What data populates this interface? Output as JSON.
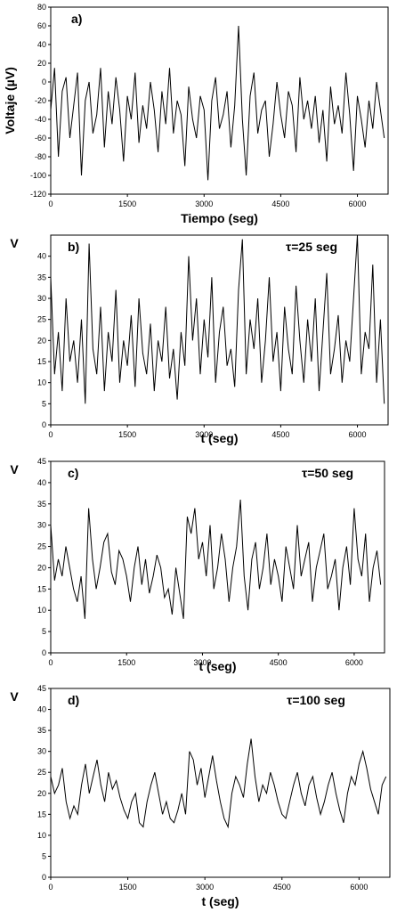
{
  "chart_data": [
    {
      "panel": "a)",
      "type": "line",
      "xlabel": "Tiempo (seg)",
      "ylabel": "Voltaje (µV)",
      "annotation": "",
      "xlim": [
        0,
        6600
      ],
      "ylim": [
        -120,
        80
      ],
      "xticks": [
        0,
        1500,
        3000,
        4500,
        6000
      ],
      "yticks": [
        -120,
        -100,
        -80,
        -60,
        -40,
        -20,
        0,
        20,
        40,
        60,
        80
      ],
      "series": [
        {
          "x": [
            0,
            75,
            150,
            225,
            300,
            375,
            450,
            525,
            600,
            675,
            750,
            825,
            900,
            975,
            1050,
            1125,
            1200,
            1275,
            1350,
            1425,
            1500,
            1575,
            1650,
            1725,
            1800,
            1875,
            1950,
            2025,
            2100,
            2175,
            2250,
            2325,
            2400,
            2475,
            2550,
            2625,
            2700,
            2775,
            2850,
            2925,
            3000,
            3075,
            3150,
            3225,
            3300,
            3375,
            3450,
            3525,
            3600,
            3675,
            3750,
            3825,
            3900,
            3975,
            4050,
            4125,
            4200,
            4275,
            4350,
            4425,
            4500,
            4575,
            4650,
            4725,
            4800,
            4875,
            4950,
            5025,
            5100,
            5175,
            5250,
            5325,
            5400,
            5475,
            5550,
            5625,
            5700,
            5775,
            5850,
            5925,
            6000,
            6075,
            6150,
            6225,
            6300,
            6375,
            6450,
            6525
          ],
          "y": [
            -30,
            15,
            -80,
            -10,
            5,
            -60,
            -25,
            10,
            -100,
            -20,
            0,
            -55,
            -35,
            15,
            -70,
            -10,
            -45,
            5,
            -30,
            -85,
            -15,
            -40,
            10,
            -65,
            -25,
            -50,
            0,
            -30,
            -75,
            -10,
            -45,
            15,
            -55,
            -20,
            -35,
            -90,
            -5,
            -40,
            -60,
            -15,
            -30,
            -105,
            -20,
            5,
            -50,
            -35,
            -10,
            -70,
            -25,
            60,
            -40,
            -100,
            -15,
            10,
            -55,
            -30,
            -20,
            -80,
            -45,
            0,
            -35,
            -60,
            -10,
            -25,
            -75,
            5,
            -40,
            -20,
            -50,
            -15,
            -65,
            -30,
            -85,
            -5,
            -45,
            -25,
            -55,
            10,
            -35,
            -95,
            -15,
            -40,
            -70,
            -20,
            -50,
            0,
            -30,
            -60
          ]
        }
      ]
    },
    {
      "panel": "b)",
      "type": "line",
      "xlabel": "t (seg)",
      "ylabel": "V",
      "annotation": "τ=25 seg",
      "xlim": [
        0,
        6600
      ],
      "ylim": [
        0,
        45
      ],
      "xticks": [
        0,
        1500,
        3000,
        4500,
        6000
      ],
      "yticks": [
        0,
        5,
        10,
        15,
        20,
        25,
        30,
        35,
        40
      ],
      "series": [
        {
          "x": [
            0,
            75,
            150,
            225,
            300,
            375,
            450,
            525,
            600,
            675,
            750,
            825,
            900,
            975,
            1050,
            1125,
            1200,
            1275,
            1350,
            1425,
            1500,
            1575,
            1650,
            1725,
            1800,
            1875,
            1950,
            2025,
            2100,
            2175,
            2250,
            2325,
            2400,
            2475,
            2550,
            2625,
            2700,
            2775,
            2850,
            2925,
            3000,
            3075,
            3150,
            3225,
            3300,
            3375,
            3450,
            3525,
            3600,
            3675,
            3750,
            3825,
            3900,
            3975,
            4050,
            4125,
            4200,
            4275,
            4350,
            4425,
            4500,
            4575,
            4650,
            4725,
            4800,
            4875,
            4950,
            5025,
            5100,
            5175,
            5250,
            5325,
            5400,
            5475,
            5550,
            5625,
            5700,
            5775,
            5850,
            5925,
            6000,
            6075,
            6150,
            6225,
            6300,
            6375,
            6450,
            6525
          ],
          "y": [
            35,
            12,
            22,
            8,
            30,
            15,
            20,
            10,
            25,
            5,
            43,
            18,
            12,
            28,
            8,
            22,
            15,
            32,
            10,
            20,
            14,
            26,
            9,
            30,
            17,
            12,
            24,
            8,
            20,
            15,
            28,
            11,
            18,
            6,
            22,
            14,
            40,
            20,
            30,
            12,
            25,
            16,
            35,
            10,
            22,
            28,
            14,
            18,
            9,
            32,
            44,
            12,
            25,
            18,
            30,
            10,
            20,
            35,
            15,
            22,
            8,
            28,
            18,
            12,
            33,
            20,
            10,
            25,
            15,
            30,
            8,
            22,
            36,
            12,
            18,
            26,
            10,
            20,
            15,
            30,
            45,
            12,
            22,
            18,
            38,
            10,
            25,
            5
          ]
        }
      ]
    },
    {
      "panel": "c)",
      "type": "line",
      "xlabel": "t (seg)",
      "ylabel": "V",
      "annotation": "τ=50 seg",
      "xlim": [
        0,
        6600
      ],
      "ylim": [
        0,
        45
      ],
      "xticks": [
        0,
        1500,
        3000,
        4500,
        6000
      ],
      "yticks": [
        0,
        5,
        10,
        15,
        20,
        25,
        30,
        35,
        40,
        45
      ],
      "series": [
        {
          "x": [
            0,
            75,
            150,
            225,
            300,
            375,
            450,
            525,
            600,
            675,
            750,
            825,
            900,
            975,
            1050,
            1125,
            1200,
            1275,
            1350,
            1425,
            1500,
            1575,
            1650,
            1725,
            1800,
            1875,
            1950,
            2025,
            2100,
            2175,
            2250,
            2325,
            2400,
            2475,
            2550,
            2625,
            2700,
            2775,
            2850,
            2925,
            3000,
            3075,
            3150,
            3225,
            3300,
            3375,
            3450,
            3525,
            3600,
            3675,
            3750,
            3825,
            3900,
            3975,
            4050,
            4125,
            4200,
            4275,
            4350,
            4425,
            4500,
            4575,
            4650,
            4725,
            4800,
            4875,
            4950,
            5025,
            5100,
            5175,
            5250,
            5325,
            5400,
            5475,
            5550,
            5625,
            5700,
            5775,
            5850,
            5925,
            6000,
            6075,
            6150,
            6225,
            6300,
            6375,
            6450,
            6525
          ],
          "y": [
            30,
            17,
            22,
            18,
            25,
            20,
            15,
            12,
            18,
            8,
            34,
            22,
            15,
            20,
            26,
            28,
            19,
            16,
            24,
            22,
            18,
            12,
            20,
            25,
            16,
            22,
            14,
            18,
            23,
            20,
            13,
            15,
            9,
            20,
            14,
            8,
            32,
            28,
            34,
            22,
            26,
            18,
            30,
            15,
            20,
            28,
            22,
            12,
            20,
            25,
            36,
            18,
            10,
            22,
            26,
            15,
            20,
            28,
            16,
            22,
            18,
            12,
            25,
            20,
            15,
            30,
            18,
            22,
            26,
            12,
            20,
            24,
            28,
            15,
            18,
            22,
            10,
            20,
            25,
            16,
            34,
            22,
            18,
            28,
            12,
            20,
            24,
            16
          ]
        }
      ]
    },
    {
      "panel": "d)",
      "type": "line",
      "xlabel": "t (seg)",
      "ylabel": "V",
      "annotation": "τ=100 seg",
      "xlim": [
        0,
        6600
      ],
      "ylim": [
        0,
        45
      ],
      "xticks": [
        0,
        1500,
        3000,
        4500,
        6000
      ],
      "yticks": [
        0,
        5,
        10,
        15,
        20,
        25,
        30,
        35,
        40,
        45
      ],
      "series": [
        {
          "x": [
            0,
            75,
            150,
            225,
            300,
            375,
            450,
            525,
            600,
            675,
            750,
            825,
            900,
            975,
            1050,
            1125,
            1200,
            1275,
            1350,
            1425,
            1500,
            1575,
            1650,
            1725,
            1800,
            1875,
            1950,
            2025,
            2100,
            2175,
            2250,
            2325,
            2400,
            2475,
            2550,
            2625,
            2700,
            2775,
            2850,
            2925,
            3000,
            3075,
            3150,
            3225,
            3300,
            3375,
            3450,
            3525,
            3600,
            3675,
            3750,
            3825,
            3900,
            3975,
            4050,
            4125,
            4200,
            4275,
            4350,
            4425,
            4500,
            4575,
            4650,
            4725,
            4800,
            4875,
            4950,
            5025,
            5100,
            5175,
            5250,
            5325,
            5400,
            5475,
            5550,
            5625,
            5700,
            5775,
            5850,
            5925,
            6000,
            6075,
            6150,
            6225,
            6300,
            6375,
            6450,
            6525
          ],
          "y": [
            24,
            20,
            22,
            26,
            18,
            14,
            17,
            15,
            22,
            27,
            20,
            24,
            28,
            22,
            18,
            25,
            21,
            23,
            19,
            16,
            14,
            18,
            20,
            13,
            12,
            18,
            22,
            25,
            20,
            15,
            18,
            14,
            13,
            16,
            20,
            15,
            30,
            28,
            22,
            26,
            19,
            24,
            29,
            23,
            18,
            14,
            12,
            20,
            24,
            22,
            19,
            27,
            33,
            24,
            18,
            22,
            20,
            25,
            22,
            18,
            15,
            14,
            18,
            22,
            25,
            20,
            17,
            22,
            24,
            19,
            15,
            18,
            22,
            25,
            20,
            16,
            13,
            20,
            24,
            22,
            27,
            30,
            26,
            21,
            18,
            15,
            22,
            24
          ]
        }
      ]
    }
  ]
}
